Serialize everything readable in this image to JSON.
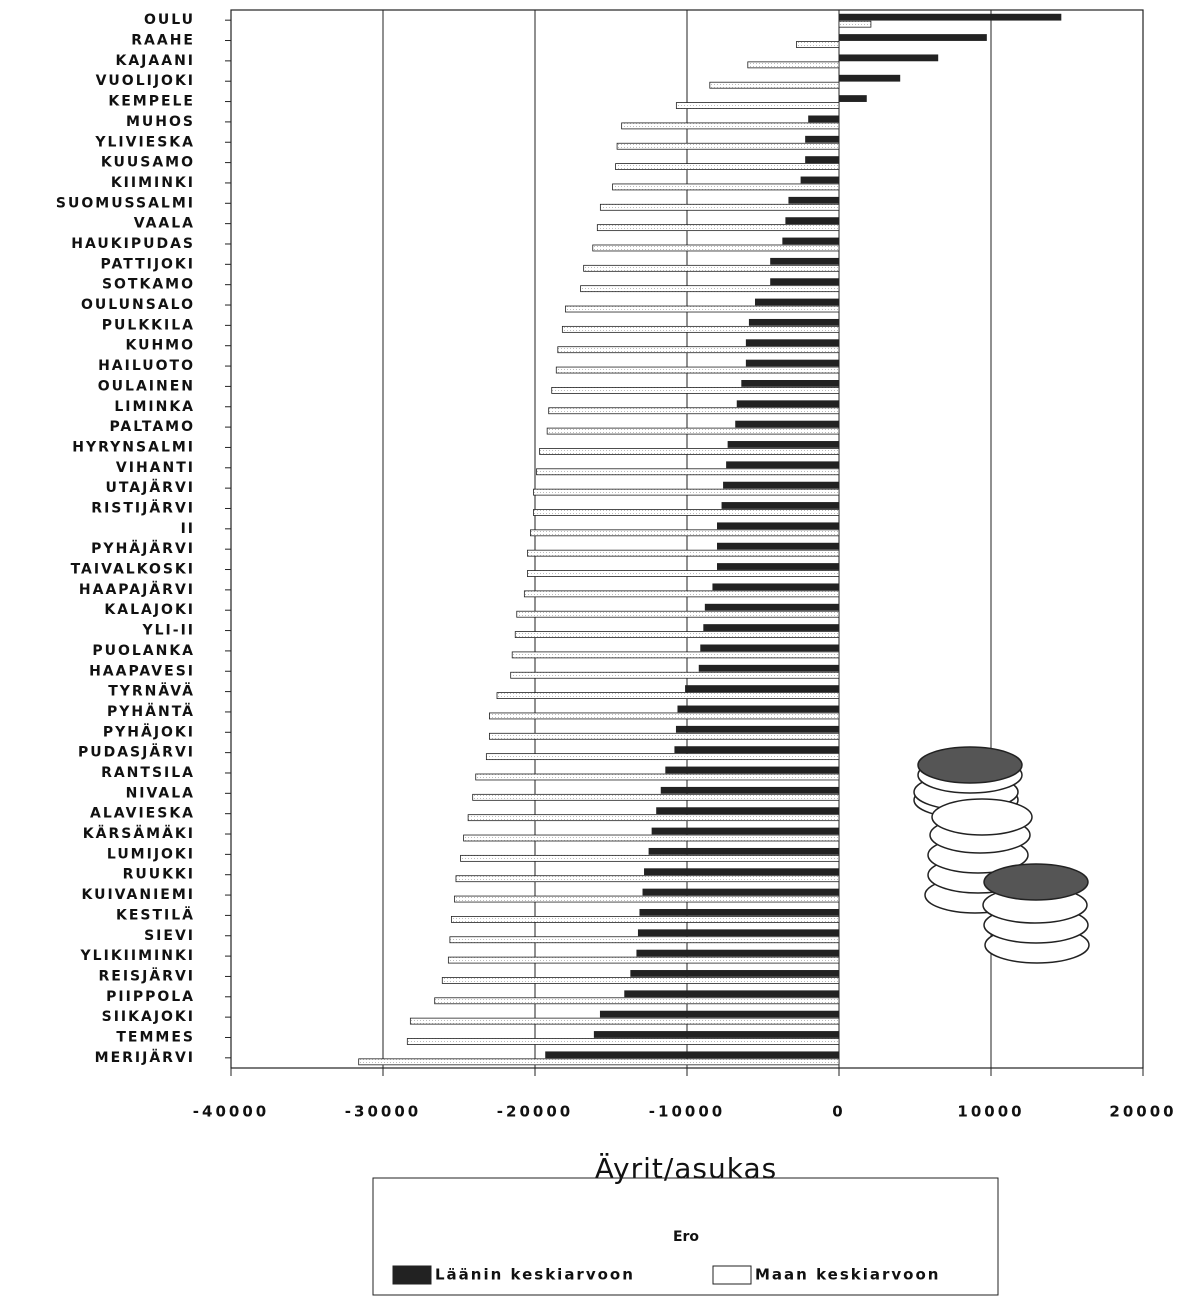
{
  "chart_data": {
    "type": "bar",
    "orientation": "horizontal",
    "x_label": "Äyrit/asukas",
    "categories": [
      "OULU",
      "RAAHE",
      "KAJAANI",
      "VUOLIJOKI",
      "KEMPELE",
      "MUHOS",
      "YLIVIESKA",
      "KUUSAMO",
      "KIIMINKI",
      "SUOMUSSALMI",
      "VAALA",
      "HAUKIPUDAS",
      "PATTIJOKI",
      "SOTKAMO",
      "OULUNSALO",
      "PULKKILA",
      "KUHMO",
      "HAILUOTO",
      "OULAINEN",
      "LIMINKA",
      "PALTAMO",
      "HYRYNSALMI",
      "VIHANTI",
      "UTAJÄRVI",
      "RISTIJÄRVI",
      "II",
      "PYHÄJÄRVI",
      "TAIVALKOSKI",
      "HAAPAJÄRVI",
      "KALAJOKI",
      "YLI-II",
      "PUOLANKA",
      "HAAPAVESI",
      "TYRNÄVÄ",
      "PYHÄNTÄ",
      "PYHÄJOKI",
      "PUDASJÄRVI",
      "RANTSILA",
      "NIVALA",
      "ALAVIESKA",
      "KÄRSÄMÄKI",
      "LUMIJOKI",
      "RUUKKI",
      "KUIVANIEMI",
      "KESTILÄ",
      "SIEVI",
      "YLIKIIMINKI",
      "REISJÄRVI",
      "PIIPPOLA",
      "SIIKAJOKI",
      "TEMMES",
      "MERIJÄRVI"
    ],
    "series": [
      {
        "name": "Läänin keskiarvoon",
        "color": "#222222",
        "values": [
          14600,
          9700,
          6500,
          4000,
          1800,
          -2000,
          -2200,
          -2200,
          -2500,
          -3300,
          -3500,
          -3700,
          -4500,
          -4500,
          -5500,
          -5900,
          -6100,
          -6100,
          -6400,
          -6700,
          -6800,
          -7300,
          -7400,
          -7600,
          -7700,
          -8000,
          -8000,
          -8000,
          -8300,
          -8800,
          -8900,
          -9100,
          -9200,
          -10100,
          -10600,
          -10700,
          -10800,
          -11400,
          -11700,
          -12000,
          -12300,
          -12500,
          -12800,
          -12900,
          -13100,
          -13200,
          -13300,
          -13700,
          -14100,
          -15700,
          -16100,
          -19300
        ]
      },
      {
        "name": "Maan keskiarvoon",
        "color": "#ffffff",
        "values": [
          2100,
          -2800,
          -6000,
          -8500,
          -10700,
          -14300,
          -14600,
          -14700,
          -14900,
          -15700,
          -15900,
          -16200,
          -16800,
          -17000,
          -18000,
          -18200,
          -18500,
          -18600,
          -18900,
          -19100,
          -19200,
          -19700,
          -19900,
          -20100,
          -20100,
          -20300,
          -20500,
          -20500,
          -20700,
          -21200,
          -21300,
          -21500,
          -21600,
          -22500,
          -23000,
          -23000,
          -23200,
          -23900,
          -24100,
          -24400,
          -24700,
          -24900,
          -25200,
          -25300,
          -25500,
          -25600,
          -25700,
          -26100,
          -26600,
          -28200,
          -28400,
          -31600
        ]
      }
    ],
    "xlim": [
      -40000,
      20000
    ],
    "xticks": [
      -40000,
      -30000,
      -20000,
      -10000,
      0,
      10000,
      20000
    ],
    "grid": true,
    "legend_title": "Ero"
  }
}
